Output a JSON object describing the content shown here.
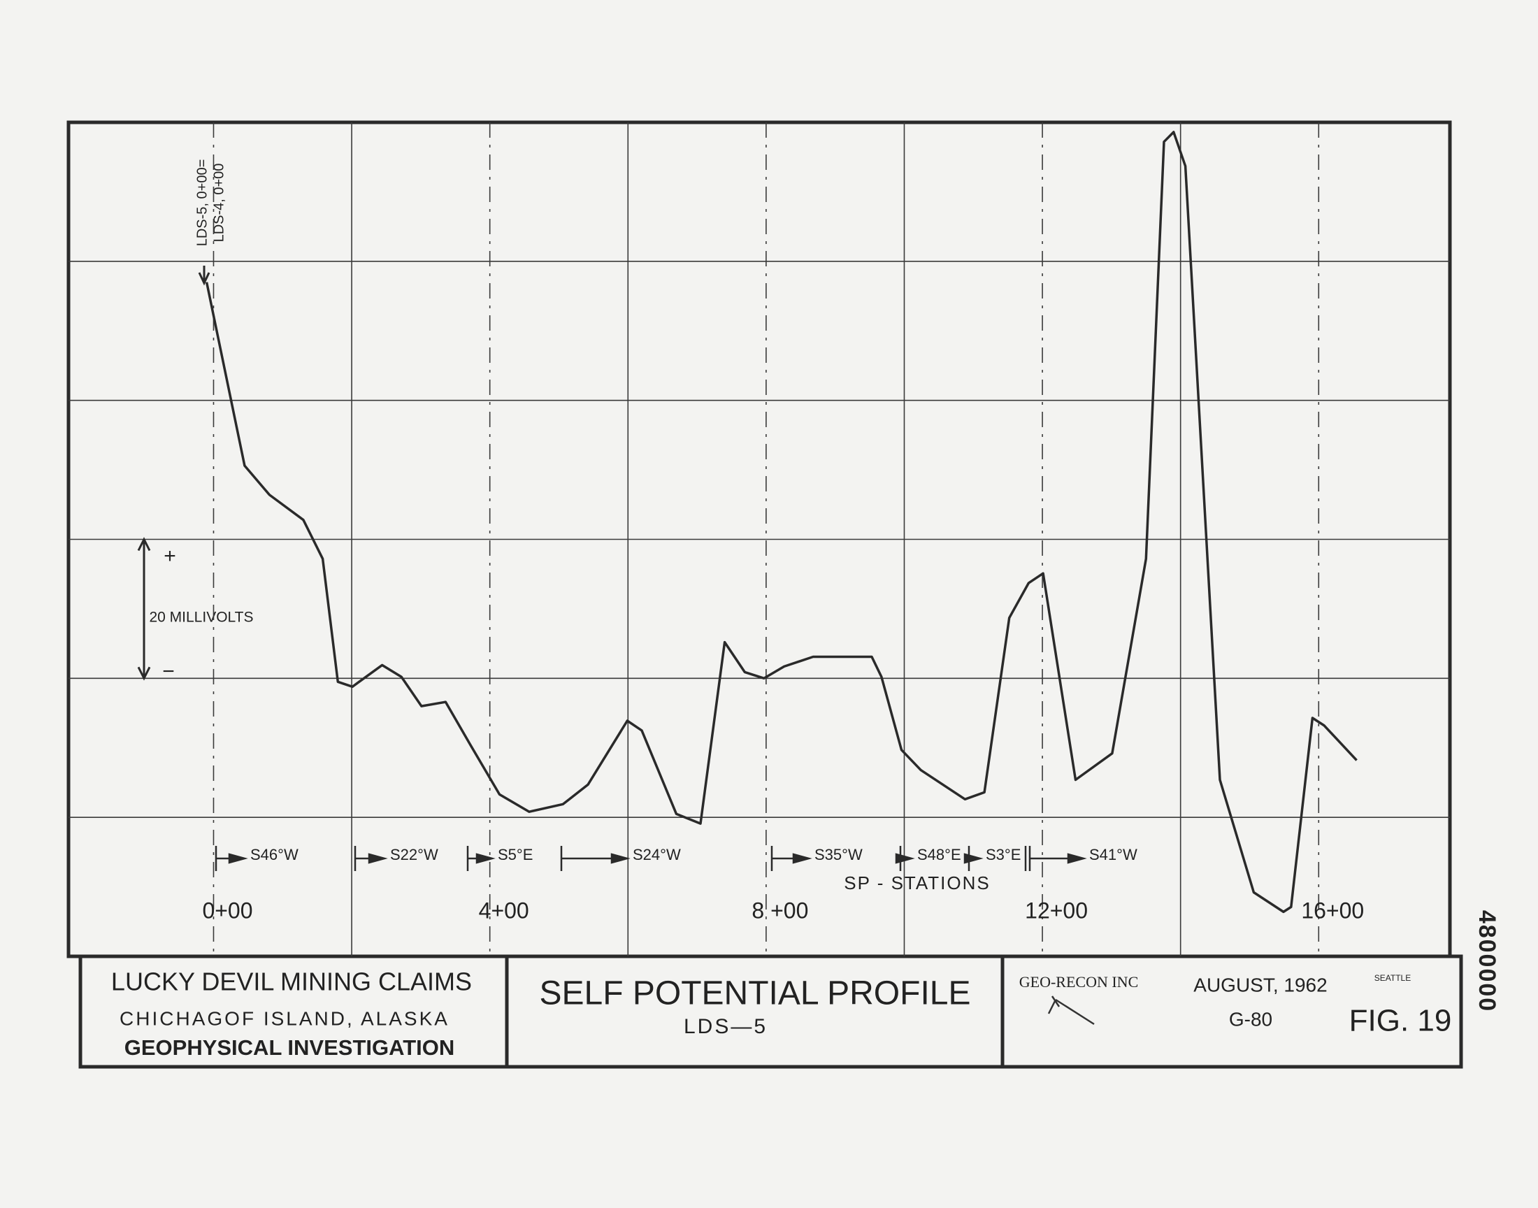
{
  "chart_data": {
    "type": "line",
    "title": "SELF POTENTIAL PROFILE",
    "subtitle": "LDS—5",
    "x_label": "SP - STATIONS",
    "scale_label": "20 MILLIVOLTS",
    "scale_plus": "+",
    "scale_minus": "−",
    "start_annotation": [
      "LDS-5, 0+00=",
      "LDS-4, 0+00"
    ],
    "bearings": [
      "S46°W",
      "S22°W",
      "S5°E",
      "S24°W",
      "S35°W",
      "S48°E",
      "S3°E",
      "S41°W"
    ],
    "title_block": {
      "project": "LUCKY DEVIL MINING CLAIMS",
      "location": "CHICHAGOF ISLAND, ALASKA",
      "subject": "GEOPHYSICAL INVESTIGATION",
      "company": "GEO-RECON INC",
      "city": "SEATTLE",
      "date": "AUGUST, 1962",
      "job": "G-80",
      "figure": "FIG. 19",
      "file_number": "4800000"
    },
    "x": [
      -10,
      45,
      81,
      130,
      158,
      180,
      201,
      244,
      272,
      301,
      336,
      372,
      414,
      457,
      506,
      542,
      599,
      620,
      670,
      705,
      740,
      769,
      797,
      826,
      868,
      953,
      967,
      996,
      1024,
      1088,
      1116,
      1152,
      1180,
      1201,
      1248,
      1301,
      1350,
      1376,
      1390,
      1407,
      1457,
      1506,
      1549,
      1560,
      1591,
      1608,
      1655
    ],
    "series": [
      {
        "color": "#2a2a2a",
        "values": [
          97,
          70.6,
          66.4,
          62.8,
          57.2,
          39.5,
          38.8,
          41.9,
          40.2,
          36,
          36.6,
          30.4,
          23.3,
          20.8,
          21.9,
          24.7,
          33.9,
          32.5,
          20.5,
          19.1,
          45.2,
          40.9,
          40,
          41.7,
          43.1,
          43.1,
          40.2,
          29.7,
          26.8,
          22.6,
          23.6,
          48.7,
          53.7,
          55.1,
          25.4,
          29.2,
          57.2,
          117.2,
          118.6,
          113.7,
          25.4,
          9.2,
          6.4,
          7.1,
          34.3,
          33.2,
          28.2
        ]
      }
    ],
    "xlim": [
      -210,
      1790
    ],
    "ylim": [
      0,
      120
    ],
    "xticks": [
      {
        "value": 0,
        "label": "0+00"
      },
      {
        "value": 400,
        "label": "4+00"
      },
      {
        "value": 800,
        "label": "8 +00"
      },
      {
        "value": 1200,
        "label": "12+00"
      },
      {
        "value": 1600,
        "label": "16+00"
      }
    ],
    "xgrid": [
      200,
      600,
      1000,
      1400
    ],
    "ygrid": [
      20,
      40,
      60,
      80,
      100
    ],
    "grid": true
  }
}
